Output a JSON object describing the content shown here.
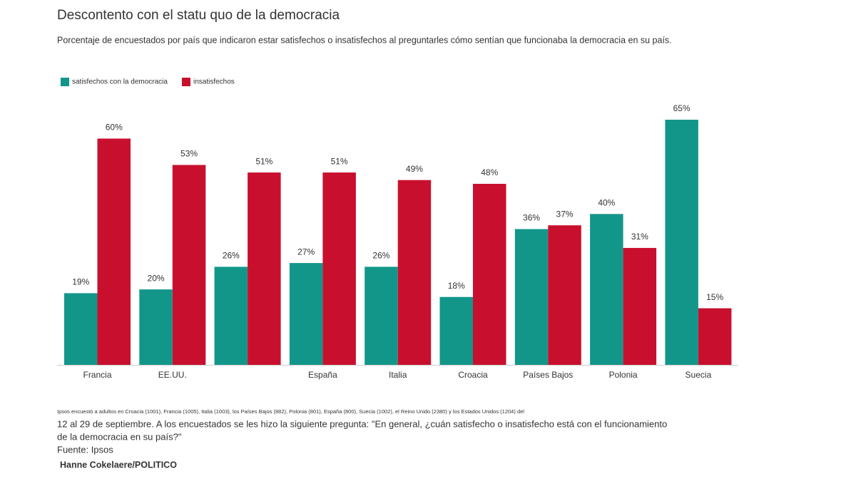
{
  "chart_data": {
    "type": "bar",
    "title": "Descontento con el statu quo de la democracia",
    "subtitle": "Porcentaje de encuestados por país que indicaron estar satisfechos o insatisfechos al preguntarles cómo sentían que funcionaba la democracia en su país.",
    "categories": [
      "Francia",
      "EE.UU.",
      null,
      "España",
      "Italia",
      "Croacia",
      "Países Bajos",
      "Polonia",
      "Suecia"
    ],
    "series": [
      {
        "name": "satisfechos con la democracia",
        "color": "#13968a",
        "values": [
          19,
          20,
          26,
          27,
          26,
          18,
          36,
          40,
          65
        ],
        "value_labels": [
          "19%",
          "20%",
          "26%",
          "27%",
          "26%",
          "18%",
          "36%",
          "40%",
          "65%"
        ]
      },
      {
        "name": "insatisfechos",
        "color": "#c8102e",
        "values": [
          60,
          53,
          51,
          51,
          49,
          48,
          37,
          31,
          15
        ],
        "value_labels": [
          "60%",
          "53%",
          "51%",
          "51%",
          "49%",
          "48%",
          "37%",
          "31%",
          "15%"
        ]
      }
    ],
    "ylim": [
      0,
      65
    ],
    "notes": [
      "Ipsos encuestó a adultos en Croacia (1001), Francia (1005), Italia (1003), los Países Bajos (882), Polonia (801), España (800), Suecia (1002), el Reino Unido (2380) y los Estados Unidos (1204) del",
      "12 al 29 de septiembre. A los encuestados se les hizo la siguiente pregunta: \"En general, ¿cuán satisfecho o insatisfecho está con el funcionamiento",
      "de la democracia en su país?\"",
      "Fuente: Ipsos"
    ],
    "credit": "Hanne Cokelaere/POLITICO"
  }
}
